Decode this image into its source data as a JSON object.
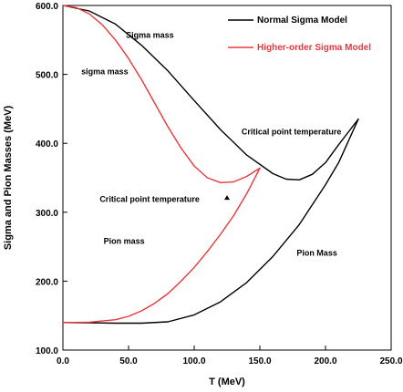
{
  "chart_data": {
    "type": "line",
    "xlabel": "T (MeV)",
    "ylabel": "Sigma and Pion Masses (MeV)",
    "xlim": [
      0,
      250
    ],
    "ylim": [
      100,
      600
    ],
    "x_ticks": [
      "0.0",
      "50.0",
      "100.0",
      "150.0",
      "200.0",
      "250.0"
    ],
    "y_ticks": [
      "100.0",
      "200.0",
      "300.0",
      "400.0",
      "500.0",
      "600.0"
    ],
    "x_tick_values": [
      0,
      50,
      100,
      150,
      200,
      250
    ],
    "y_tick_values": [
      100,
      200,
      300,
      400,
      500,
      600
    ],
    "grid": false,
    "legend_position": "top-right",
    "series": [
      {
        "name": "Normal Sigma Model",
        "color": "#000000",
        "curves": [
          {
            "label": "Sigma mass",
            "x": [
              0,
              20,
              40,
              60,
              80,
              100,
              120,
              140,
              160,
              170,
              180,
              190,
              200,
              210,
              225
            ],
            "y": [
              600,
              592,
              573,
              542,
              505,
              462,
              420,
              383,
              356,
              348,
              347,
              355,
              372,
              398,
              435
            ]
          },
          {
            "label": "Pion Mass",
            "x": [
              0,
              20,
              40,
              60,
              80,
              100,
              120,
              140,
              160,
              180,
              200,
              210,
              225
            ],
            "y": [
              140,
              139.5,
              139,
              139,
              141,
              151,
              170,
              198,
              236,
              282,
              340,
              372,
              435
            ]
          }
        ]
      },
      {
        "name": "Higher-order Sigma Model",
        "color": "#e8383d",
        "curves": [
          {
            "label": "sigma mass",
            "x": [
              0,
              10,
              20,
              30,
              40,
              50,
              60,
              70,
              80,
              90,
              100,
              110,
              120,
              130,
              140,
              150
            ],
            "y": [
              600,
              597,
              588,
              572,
              550,
              523,
              492,
              458,
              424,
              393,
              367,
              350,
              343,
              344,
              352,
              364
            ]
          },
          {
            "label": "Pion mass",
            "x": [
              0,
              20,
              40,
              50,
              60,
              70,
              80,
              90,
              100,
              110,
              120,
              130,
              140,
              150
            ],
            "y": [
              140,
              140.5,
              144,
              149,
              157,
              168,
              182,
              200,
              220,
              243,
              268,
              295,
              327,
              364
            ]
          }
        ]
      }
    ],
    "annotations": [
      {
        "text": "Sigma mass",
        "x": 48,
        "y": 553,
        "color": "#000000"
      },
      {
        "text": "sigma mass",
        "x": 14,
        "y": 500,
        "color": "#000000"
      },
      {
        "text": "Critical point temperature",
        "x": 136,
        "y": 413,
        "color": "#000000"
      },
      {
        "text": "Critical point temperature",
        "x": 28,
        "y": 315,
        "color": "#000000"
      },
      {
        "text": "Pion mass",
        "x": 31,
        "y": 254,
        "color": "#000000"
      },
      {
        "text": "Pion Mass",
        "x": 178,
        "y": 237,
        "color": "#000000"
      }
    ]
  }
}
